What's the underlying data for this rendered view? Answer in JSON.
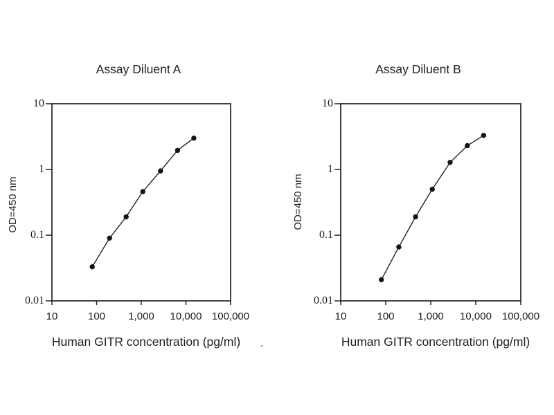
{
  "figure": {
    "background": "#ffffff",
    "text_color": "#1a1a1a",
    "line_color": "#141414"
  },
  "chart_data": [
    {
      "type": "line",
      "title": "Assay Diluent A",
      "xlabel": "Human GITR concentration (pg/ml)",
      "stray_mark": ".",
      "ylabel": "OD=450 nm",
      "log_x": true,
      "log_y": true,
      "xlim": [
        10,
        100000
      ],
      "ylim": [
        0.01,
        10
      ],
      "x_tick_labels": [
        "10",
        "100",
        "1,000",
        "10,000",
        "100,000"
      ],
      "x_tick_values": [
        10,
        100,
        1000,
        10000,
        100000
      ],
      "y_tick_labels": [
        "10",
        "1",
        "0.1",
        "0.01"
      ],
      "y_tick_values": [
        10,
        1,
        0.1,
        0.01
      ],
      "grid": false,
      "legend": null,
      "marker": "filled-circle",
      "color": "#000000",
      "x": [
        80,
        195,
        460,
        1080,
        2700,
        6500,
        15000
      ],
      "y": [
        0.033,
        0.09,
        0.19,
        0.46,
        0.95,
        1.95,
        3.0
      ]
    },
    {
      "type": "line",
      "title": "Assay Diluent B",
      "xlabel": "Human GITR concentration (pg/ml)",
      "ylabel": "OD=450 nm",
      "log_x": true,
      "log_y": true,
      "xlim": [
        10,
        100000
      ],
      "ylim": [
        0.01,
        10
      ],
      "x_tick_labels": [
        "10",
        "100",
        "1,000",
        "10,000",
        "100,000"
      ],
      "x_tick_values": [
        10,
        100,
        1000,
        10000,
        100000
      ],
      "y_tick_labels": [
        "10",
        "1",
        "0.1",
        "0.01"
      ],
      "y_tick_values": [
        10,
        1,
        0.1,
        0.01
      ],
      "grid": false,
      "legend": null,
      "marker": "filled-circle",
      "color": "#000000",
      "x": [
        80,
        195,
        460,
        1080,
        2700,
        6500,
        15000
      ],
      "y": [
        0.021,
        0.066,
        0.19,
        0.5,
        1.28,
        2.3,
        3.3
      ]
    }
  ]
}
